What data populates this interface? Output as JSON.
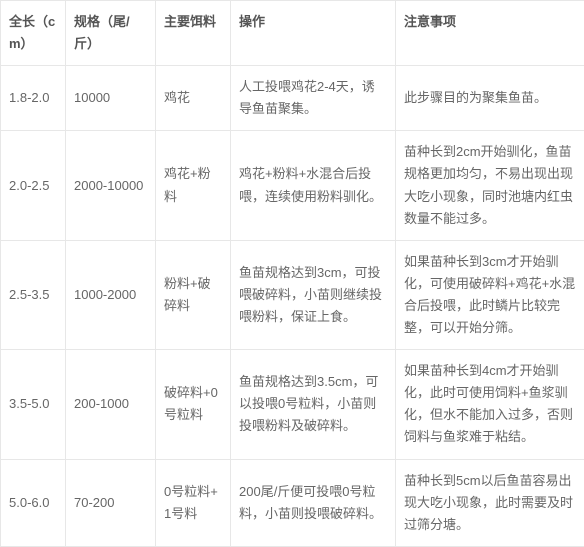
{
  "table": {
    "headers": [
      "全长（cm）",
      "规格（尾/斤）",
      "主要饵料",
      "操作",
      "注意事项"
    ],
    "rows": [
      [
        "1.8-2.0",
        "10000",
        "鸡花",
        "人工投喂鸡花2-4天，诱导鱼苗聚集。",
        "此步骤目的为聚集鱼苗。"
      ],
      [
        "2.0-2.5",
        "2000-10000",
        "鸡花+粉料",
        "鸡花+粉料+水混合后投喂，连续使用粉料驯化。",
        "苗种长到2cm开始驯化，鱼苗规格更加均匀，不易出现出现大吃小现象，同时池塘内红虫数量不能过多。"
      ],
      [
        "2.5-3.5",
        "1000-2000",
        "粉料+破碎料",
        "鱼苗规格达到3cm，可投喂破碎料，小苗则继续投喂粉料，保证上食。",
        "如果苗种长到3cm才开始驯化，可使用破碎料+鸡花+水混合后投喂，此时鳞片比较完整，可以开始分筛。"
      ],
      [
        "3.5-5.0",
        "200-1000",
        "破碎料+0号粒料",
        "鱼苗规格达到3.5cm，可以投喂0号粒料，小苗则投喂粉料及破碎料。",
        "如果苗种长到4cm才开始驯化，此时可使用饲料+鱼浆驯化，但水不能加入过多，否则饲料与鱼浆难于粘结。"
      ],
      [
        "5.0-6.0",
        "70-200",
        "0号粒料+1号料",
        "200尾/斤便可投喂0号粒料，小苗则投喂破碎料。",
        "苗种长到5cm以后鱼苗容易出现大吃小现象，此时需要及时过筛分塘。"
      ]
    ]
  }
}
